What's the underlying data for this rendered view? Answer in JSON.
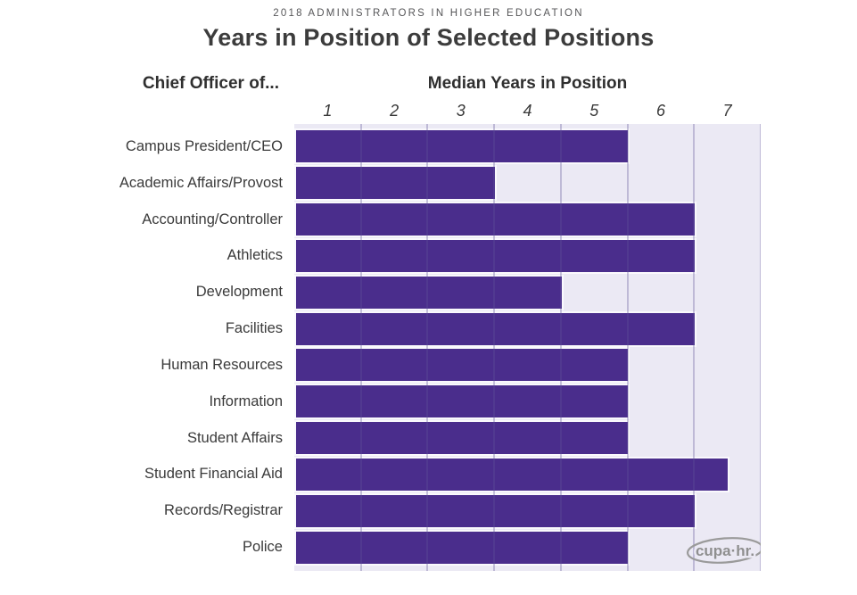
{
  "eyebrow": "2018 ADMINISTRATORS IN HIGHER EDUCATION",
  "title": "Years in Position of Selected Positions",
  "chart_data": {
    "type": "bar",
    "orientation": "horizontal",
    "left_header": "Chief Officer of...",
    "axis_header": "Median Years in Position",
    "tick_labels": [
      "1",
      "2",
      "3",
      "4",
      "5",
      "6",
      "7"
    ],
    "categories": [
      "Campus President/CEO",
      "Academic Affairs/Provost",
      "Accounting/Controller",
      "Athletics",
      "Development",
      "Facilities",
      "Human Resources",
      "Information",
      "Student Affairs",
      "Student Financial Aid",
      "Records/Registrar",
      "Police"
    ],
    "values": [
      5.5,
      3.5,
      6.5,
      6.5,
      4.5,
      6.5,
      5.5,
      5.5,
      5.5,
      7,
      6.5,
      5.5
    ],
    "xlabel": "Median Years in Position",
    "ylabel": "Chief Officer of...",
    "xlim": [
      0.5,
      7.5
    ],
    "grid": true,
    "legend": false,
    "colors": {
      "bar": "#4a2d8c",
      "plot_background": "#ebe9f4",
      "gridline": "rgba(96,84,152,0.32)",
      "bar_outline": "#faf9fd",
      "text": "#3b3b3b",
      "logo_gray": "#949494"
    }
  },
  "logo": {
    "text": "cupa·hr."
  }
}
